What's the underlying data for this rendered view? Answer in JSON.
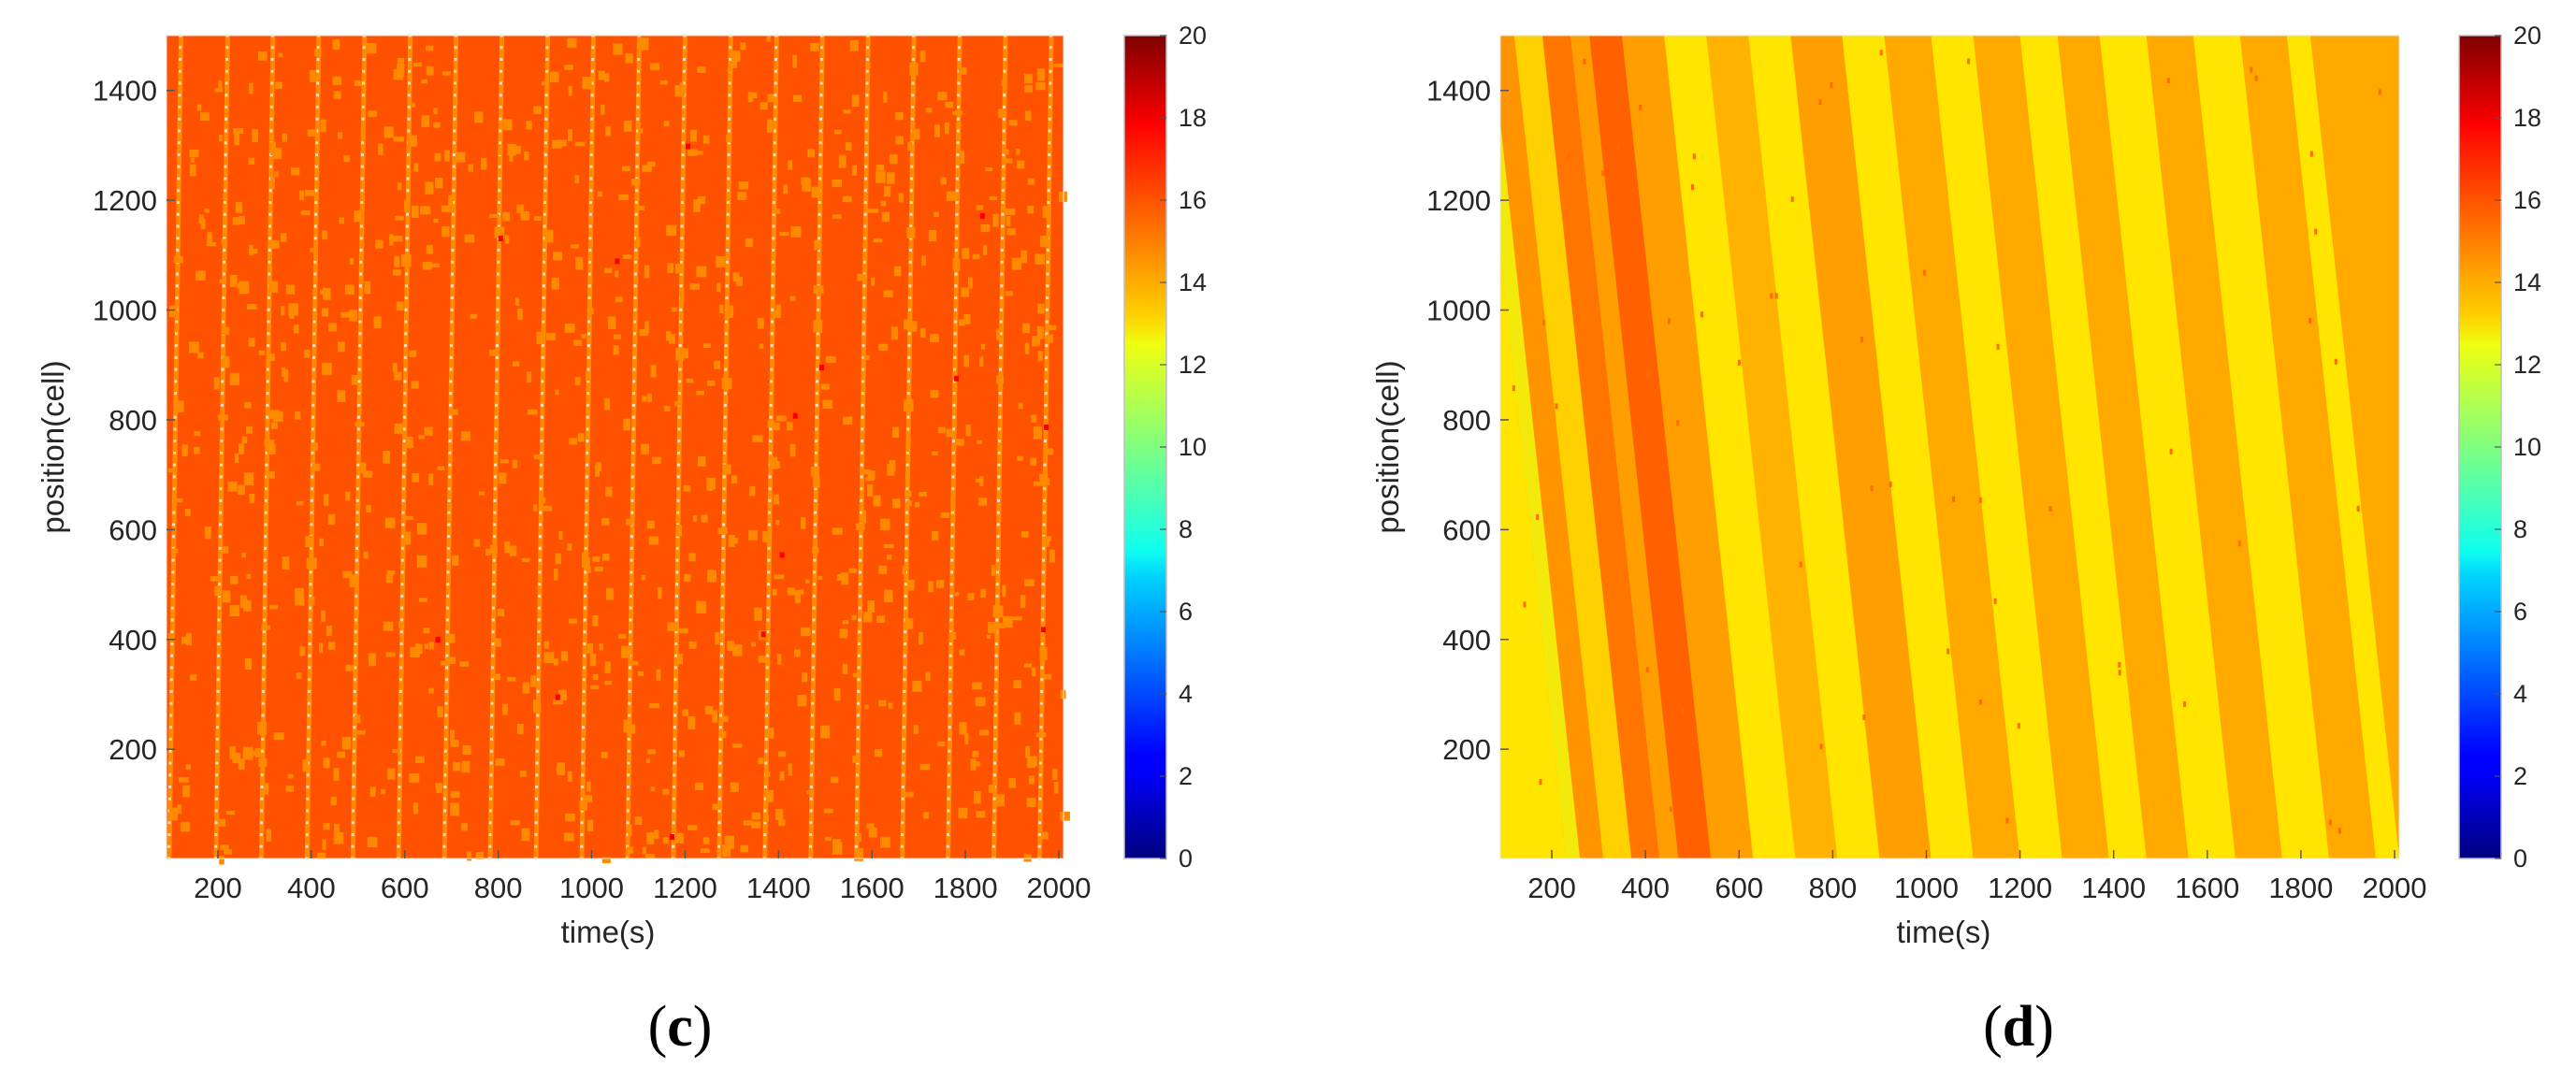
{
  "chart_data": [
    {
      "type": "heatmap",
      "panel_label": {
        "open": "(",
        "letter": "c",
        "close": ")"
      },
      "xlabel": "time(s)",
      "ylabel": "position(cell)",
      "x_ticks": [
        "200",
        "400",
        "600",
        "800",
        "1000",
        "1200",
        "1400",
        "1600",
        "1800",
        "2000"
      ],
      "y_ticks": [
        "200",
        "400",
        "600",
        "800",
        "1000",
        "1200",
        "1400"
      ],
      "xlim": [
        90,
        2010
      ],
      "ylim": [
        1,
        1500
      ],
      "colorbar": {
        "range": [
          0,
          20
        ],
        "ticks": [
          "0",
          "2",
          "4",
          "6",
          "8",
          "10",
          "12",
          "14",
          "16",
          "18",
          "20"
        ],
        "colormap": "jet"
      },
      "field": {
        "description_of_values": "speed-like value per cell and time",
        "base_value": 15.9,
        "stripes": {
          "direction": "position increases with time",
          "x_at_bottom": [
            95,
            195,
            292,
            390,
            488,
            586,
            684,
            782,
            880,
            978,
            1076,
            1174,
            1272,
            1370,
            1468,
            1566,
            1664,
            1762,
            1860,
            1958
          ],
          "x_shift_per_full_height": 25,
          "value": 14.8
        },
        "noise_value": 14.8
      }
    },
    {
      "type": "heatmap",
      "panel_label": {
        "open": "(",
        "letter": "d",
        "close": ")"
      },
      "xlabel": "time(s)",
      "ylabel": "position(cell)",
      "x_ticks": [
        "200",
        "400",
        "600",
        "800",
        "1000",
        "1200",
        "1400",
        "1600",
        "1800",
        "2000"
      ],
      "y_ticks": [
        "200",
        "400",
        "600",
        "800",
        "1000",
        "1200",
        "1400"
      ],
      "xlim": [
        90,
        2010
      ],
      "ylim": [
        1,
        1500
      ],
      "colorbar": {
        "range": [
          0,
          20
        ],
        "ticks": [
          "0",
          "2",
          "4",
          "6",
          "8",
          "10",
          "12",
          "14",
          "16",
          "18",
          "20"
        ],
        "colormap": "jet"
      },
      "field": {
        "description_of_values": "speed-like value per cell and time",
        "bands": {
          "direction": "position decreases with time",
          "x_shift_per_full_height": 190
        },
        "band_edges_at_bottom": [
          90,
          230,
          310,
          370,
          430,
          470,
          540,
          630,
          720,
          810,
          900,
          1010,
          1100,
          1200,
          1290,
          1390,
          1470,
          1560,
          1660,
          1760,
          1860,
          1960,
          2010
        ],
        "band_values": [
          13.0,
          14.6,
          13.4,
          15.2,
          14.4,
          15.6,
          14.4,
          13.0,
          14.0,
          13.0,
          14.4,
          13.0,
          14.2,
          13.0,
          14.2,
          13.0,
          14.2,
          13.0,
          14.2,
          13.0,
          14.2,
          13.0
        ]
      }
    }
  ]
}
